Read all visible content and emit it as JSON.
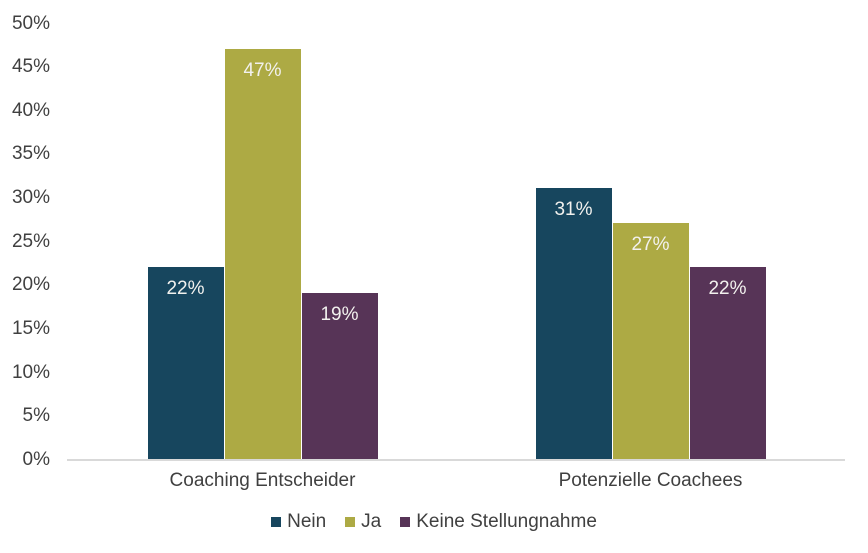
{
  "chart_data": {
    "type": "bar",
    "title": "",
    "categories": [
      "Coaching Entscheider",
      "Potenzielle Coachees"
    ],
    "series": [
      {
        "name": "Nein",
        "color": "#17465e",
        "values": [
          22,
          31
        ],
        "labels": [
          "22%",
          "31%"
        ]
      },
      {
        "name": "Ja",
        "color": "#adaa44",
        "values": [
          47,
          27
        ],
        "labels": [
          "47%",
          "27%"
        ]
      },
      {
        "name": "Keine Stellungnahme",
        "color": "#573457",
        "values": [
          19,
          22
        ],
        "labels": [
          "19%",
          "22%"
        ]
      }
    ],
    "y_ticks": [
      "0%",
      "5%",
      "10%",
      "15%",
      "20%",
      "25%",
      "30%",
      "35%",
      "40%",
      "45%",
      "50%"
    ],
    "y_tick_step": 5,
    "ylim": [
      0,
      50
    ],
    "grid": false,
    "legend_position": "bottom",
    "colors": {
      "axis_text": "#404040",
      "axis_line": "#d9d9d9",
      "data_label": "#f2f1ee",
      "background": "#ffffff"
    }
  }
}
